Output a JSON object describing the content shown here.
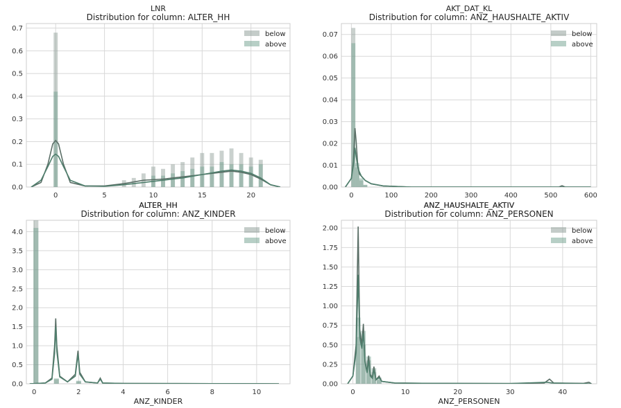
{
  "colors": {
    "below": "#8a9a93",
    "above": "#6fa08e",
    "kde_below": "#5a6e66",
    "kde_above": "#4f7f6d",
    "grid": "#d8d8d8",
    "frame": "#cccccc"
  },
  "chart_data": [
    {
      "type": "histogram",
      "suptitle": "LNR",
      "title": "Distribution for column: ALTER_HH",
      "xlabel": "ALTER_HH",
      "legend": [
        "below",
        "above"
      ],
      "legend_position": "top-right",
      "grid": true,
      "xlim": [
        -3,
        24
      ],
      "ylim": [
        0,
        0.72
      ],
      "xticks": [
        0,
        5,
        10,
        15,
        20
      ],
      "xtick_labels": [
        "0",
        "5",
        "10",
        "15",
        "20"
      ],
      "yticks": [
        0,
        0.1,
        0.2,
        0.3,
        0.4,
        0.5,
        0.6,
        0.7
      ],
      "ytick_labels": [
        "0.0",
        "0.1",
        "0.2",
        "0.3",
        "0.4",
        "0.5",
        "0.6",
        "0.7"
      ],
      "bin_width": 0.42,
      "series": [
        {
          "name": "below",
          "bars": [
            [
              0,
              0.68
            ],
            [
              7,
              0.03
            ],
            [
              8,
              0.04
            ],
            [
              9,
              0.06
            ],
            [
              10,
              0.09
            ],
            [
              11,
              0.08
            ],
            [
              12,
              0.1
            ],
            [
              13,
              0.11
            ],
            [
              14,
              0.13
            ],
            [
              15,
              0.15
            ],
            [
              16,
              0.15
            ],
            [
              17,
              0.16
            ],
            [
              18,
              0.17
            ],
            [
              19,
              0.15
            ],
            [
              20,
              0.13
            ],
            [
              21,
              0.12
            ]
          ],
          "kde": [
            [
              -2.5,
              0
            ],
            [
              -1.5,
              0.02
            ],
            [
              -0.8,
              0.1
            ],
            [
              -0.3,
              0.19
            ],
            [
              0,
              0.205
            ],
            [
              0.3,
              0.19
            ],
            [
              0.8,
              0.1
            ],
            [
              1.5,
              0.02
            ],
            [
              3,
              0.005
            ],
            [
              5,
              0.005
            ],
            [
              7,
              0.015
            ],
            [
              9,
              0.03
            ],
            [
              11,
              0.035
            ],
            [
              13,
              0.045
            ],
            [
              15,
              0.055
            ],
            [
              17,
              0.065
            ],
            [
              18,
              0.07
            ],
            [
              19,
              0.065
            ],
            [
              20,
              0.055
            ],
            [
              21,
              0.035
            ],
            [
              22,
              0.01
            ],
            [
              23,
              0
            ]
          ]
        },
        {
          "name": "above",
          "bars": [
            [
              0,
              0.42
            ],
            [
              10,
              0.05
            ],
            [
              11,
              0.05
            ],
            [
              12,
              0.06
            ],
            [
              13,
              0.07
            ],
            [
              14,
              0.08
            ],
            [
              15,
              0.09
            ],
            [
              16,
              0.09
            ],
            [
              17,
              0.11
            ],
            [
              18,
              0.1
            ],
            [
              19,
              0.1
            ],
            [
              20,
              0.09
            ],
            [
              21,
              0.1
            ]
          ],
          "kde": [
            [
              -2.5,
              0
            ],
            [
              -1.5,
              0.03
            ],
            [
              -0.8,
              0.09
            ],
            [
              -0.3,
              0.135
            ],
            [
              0,
              0.145
            ],
            [
              0.3,
              0.135
            ],
            [
              0.8,
              0.09
            ],
            [
              1.5,
              0.03
            ],
            [
              3,
              0.005
            ],
            [
              5,
              0.003
            ],
            [
              7,
              0.01
            ],
            [
              9,
              0.02
            ],
            [
              11,
              0.03
            ],
            [
              13,
              0.04
            ],
            [
              15,
              0.055
            ],
            [
              17,
              0.07
            ],
            [
              18,
              0.075
            ],
            [
              19,
              0.07
            ],
            [
              20,
              0.06
            ],
            [
              21,
              0.04
            ],
            [
              22,
              0.01
            ],
            [
              23,
              0
            ]
          ]
        }
      ]
    },
    {
      "type": "histogram",
      "suptitle": "AKT_DAT_KL",
      "title": "Distribution for column: ANZ_HAUSHALTE_AKTIV",
      "xlabel": "ANZ_HAUSHALTE_AKTIV",
      "legend": [
        "below",
        "above"
      ],
      "legend_position": "top-right",
      "grid": true,
      "xlim": [
        -25,
        615
      ],
      "ylim": [
        0,
        0.075
      ],
      "xticks": [
        0,
        100,
        200,
        300,
        400,
        500,
        600
      ],
      "xtick_labels": [
        "0",
        "100",
        "200",
        "300",
        "400",
        "500",
        "600"
      ],
      "yticks": [
        0,
        0.01,
        0.02,
        0.03,
        0.04,
        0.05,
        0.06,
        0.07
      ],
      "ytick_labels": [
        "0.00",
        "0.01",
        "0.02",
        "0.03",
        "0.04",
        "0.05",
        "0.06",
        "0.07"
      ],
      "bin_width": 10,
      "series": [
        {
          "name": "below",
          "bars": [
            [
              5,
              0.073
            ],
            [
              15,
              0.009
            ],
            [
              25,
              0.003
            ],
            [
              35,
              0.001
            ]
          ],
          "kde": [
            [
              -15,
              0
            ],
            [
              0,
              0.004
            ],
            [
              5,
              0.012
            ],
            [
              9,
              0.027
            ],
            [
              12,
              0.021
            ],
            [
              16,
              0.01
            ],
            [
              20,
              0.006
            ],
            [
              25,
              0.005
            ],
            [
              35,
              0.003
            ],
            [
              50,
              0.0015
            ],
            [
              80,
              0.0005
            ],
            [
              150,
              0
            ],
            [
              520,
              0
            ],
            [
              528,
              0.0006
            ],
            [
              536,
              0
            ],
            [
              600,
              0
            ]
          ]
        },
        {
          "name": "above",
          "bars": [
            [
              5,
              0.066
            ],
            [
              15,
              0.011
            ],
            [
              25,
              0.004
            ],
            [
              35,
              0.001
            ]
          ],
          "kde": [
            [
              -15,
              0
            ],
            [
              0,
              0.004
            ],
            [
              5,
              0.01
            ],
            [
              9,
              0.018
            ],
            [
              12,
              0.014
            ],
            [
              16,
              0.009
            ],
            [
              20,
              0.007
            ],
            [
              25,
              0.005
            ],
            [
              35,
              0.003
            ],
            [
              50,
              0.0015
            ],
            [
              80,
              0.0005
            ],
            [
              150,
              0
            ],
            [
              600,
              0
            ]
          ]
        }
      ]
    },
    {
      "type": "histogram",
      "suptitle": "ALTER_HH",
      "title": "Distribution for column: ANZ_KINDER",
      "xlabel": "ANZ_KINDER",
      "legend": [
        "below",
        "above"
      ],
      "legend_position": "top-right",
      "grid": true,
      "xlim": [
        -0.35,
        11.5
      ],
      "ylim": [
        0,
        4.3
      ],
      "xticks": [
        0,
        2,
        4,
        6,
        8,
        10
      ],
      "xtick_labels": [
        "0",
        "2",
        "4",
        "6",
        "8",
        "10"
      ],
      "yticks": [
        0,
        0.5,
        1,
        1.5,
        2,
        2.5,
        3,
        3.5,
        4
      ],
      "ytick_labels": [
        "0.0",
        "0.5",
        "1.0",
        "1.5",
        "2.0",
        "2.5",
        "3.0",
        "3.5",
        "4.0"
      ],
      "bin_width": 0.22,
      "series": [
        {
          "name": "below",
          "bars": [
            [
              0.08,
              4.3
            ],
            [
              1,
              0.12
            ],
            [
              2,
              0.06
            ]
          ],
          "kde": [
            [
              -0.2,
              0
            ],
            [
              0.5,
              0.02
            ],
            [
              0.8,
              0.15
            ],
            [
              0.92,
              1.0
            ],
            [
              0.97,
              1.72
            ],
            [
              1.02,
              1.0
            ],
            [
              1.15,
              0.2
            ],
            [
              1.5,
              0.05
            ],
            [
              1.85,
              0.25
            ],
            [
              1.97,
              0.87
            ],
            [
              2.05,
              0.3
            ],
            [
              2.3,
              0.05
            ],
            [
              2.85,
              0.02
            ],
            [
              2.97,
              0.15
            ],
            [
              3.08,
              0.02
            ],
            [
              4,
              0.01
            ],
            [
              6,
              0.005
            ],
            [
              8,
              0.003
            ],
            [
              11,
              0
            ]
          ]
        },
        {
          "name": "above",
          "bars": [
            [
              0.08,
              4.1
            ],
            [
              1,
              0.14
            ],
            [
              2,
              0.08
            ]
          ],
          "kde": [
            [
              -0.2,
              0
            ],
            [
              0.5,
              0.02
            ],
            [
              0.8,
              0.12
            ],
            [
              0.92,
              0.8
            ],
            [
              0.97,
              1.5
            ],
            [
              1.02,
              0.85
            ],
            [
              1.15,
              0.18
            ],
            [
              1.5,
              0.05
            ],
            [
              1.85,
              0.2
            ],
            [
              1.97,
              0.78
            ],
            [
              2.05,
              0.25
            ],
            [
              2.3,
              0.05
            ],
            [
              2.85,
              0.02
            ],
            [
              2.97,
              0.12
            ],
            [
              3.08,
              0.02
            ],
            [
              4,
              0.01
            ],
            [
              6,
              0.005
            ],
            [
              8,
              0.003
            ],
            [
              11,
              0
            ]
          ]
        }
      ]
    },
    {
      "type": "histogram",
      "suptitle": "ANZ_HAUSHALTE_AKTIV",
      "title": "Distribution for column: ANZ_PERSONEN",
      "xlabel": "ANZ_PERSONEN",
      "legend": [
        "below",
        "above"
      ],
      "legend_position": "top-right",
      "grid": true,
      "xlim": [
        -2.2,
        46.5
      ],
      "ylim": [
        0,
        2.1
      ],
      "xticks": [
        0,
        10,
        20,
        30,
        40
      ],
      "xtick_labels": [
        "0",
        "10",
        "20",
        "30",
        "40"
      ],
      "yticks": [
        0,
        0.25,
        0.5,
        0.75,
        1,
        1.25,
        1.5,
        1.75,
        2
      ],
      "ytick_labels": [
        "0.00",
        "0.25",
        "0.50",
        "0.75",
        "1.00",
        "1.25",
        "1.50",
        "1.75",
        "2.00"
      ],
      "bin_width": 0.9,
      "series": [
        {
          "name": "below",
          "bars": [
            [
              1,
              0.6
            ],
            [
              2,
              0.5
            ],
            [
              3,
              0.3
            ],
            [
              4,
              0.15
            ],
            [
              5,
              0.05
            ]
          ],
          "kde": [
            [
              -1,
              0
            ],
            [
              0,
              0.1
            ],
            [
              0.6,
              0.5
            ],
            [
              1,
              2.02
            ],
            [
              1.3,
              0.7
            ],
            [
              1.7,
              0.5
            ],
            [
              2,
              0.77
            ],
            [
              2.3,
              0.3
            ],
            [
              2.7,
              0.15
            ],
            [
              3,
              0.36
            ],
            [
              3.3,
              0.12
            ],
            [
              3.7,
              0.08
            ],
            [
              4,
              0.22
            ],
            [
              4.4,
              0.05
            ],
            [
              5,
              0.1
            ],
            [
              5.5,
              0.03
            ],
            [
              8,
              0.01
            ],
            [
              15,
              0.005
            ],
            [
              30,
              0.003
            ],
            [
              36.5,
              0.01
            ],
            [
              37.5,
              0.06
            ],
            [
              38.3,
              0.01
            ],
            [
              44,
              0.005
            ],
            [
              45,
              0.02
            ],
            [
              45.5,
              0
            ]
          ]
        },
        {
          "name": "above",
          "bars": [
            [
              1,
              0.85
            ],
            [
              2,
              0.68
            ],
            [
              3,
              0.35
            ],
            [
              4,
              0.2
            ],
            [
              5,
              0.08
            ]
          ],
          "kde": [
            [
              -1,
              0
            ],
            [
              0,
              0.1
            ],
            [
              0.6,
              0.4
            ],
            [
              1,
              1.4
            ],
            [
              1.3,
              0.6
            ],
            [
              1.7,
              0.45
            ],
            [
              2,
              0.65
            ],
            [
              2.3,
              0.28
            ],
            [
              2.7,
              0.14
            ],
            [
              3,
              0.3
            ],
            [
              3.3,
              0.1
            ],
            [
              3.7,
              0.07
            ],
            [
              4,
              0.18
            ],
            [
              4.4,
              0.05
            ],
            [
              5,
              0.08
            ],
            [
              5.5,
              0.03
            ],
            [
              8,
              0.01
            ],
            [
              15,
              0.005
            ],
            [
              30,
              0.003
            ],
            [
              37,
              0.02
            ],
            [
              38,
              0.01
            ],
            [
              45.5,
              0
            ]
          ]
        }
      ]
    }
  ]
}
